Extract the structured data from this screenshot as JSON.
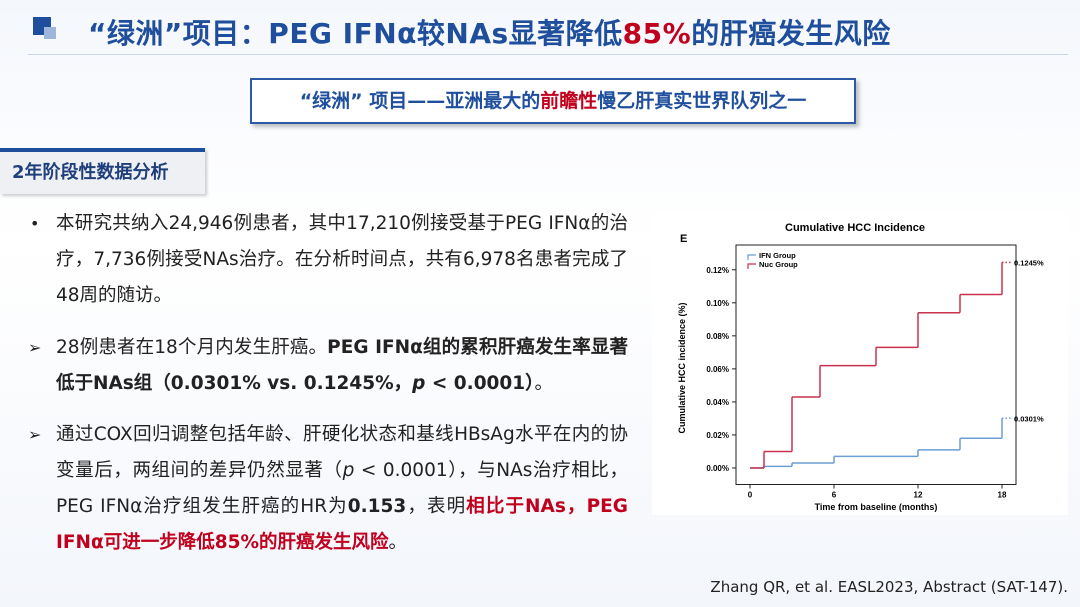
{
  "header": {
    "title": [
      "“绿洲”项目：PEG IFNα较NAs显著降低",
      "85%",
      "的肝癌发生风险"
    ]
  },
  "subtitle": [
    "“绿洲” 项目——亚洲最大的",
    "前瞻性",
    "慢乙肝真实世界队列之一"
  ],
  "section": "2年阶段性数据分析",
  "bullets": [
    [
      "本研究共纳入24,946例患者，其中17,210例接受基于PEG IFNα的治疗，7,736例接受NAs治疗。在分析时间点，共有6,978名患者完成了48周的随访。"
    ],
    [
      "28例患者在18个月内发生肝癌。",
      "PEG IFNα组的累积肝癌发生率显著低于NAs组（0.0301% vs. 0.1245%，",
      "p",
      " < 0.0001）",
      "。"
    ],
    [
      "通过COX回归调整包括年龄、肝硬化状态和基线HBsAg水平在内的协变量后，两组间的差异仍然显著（",
      "p",
      " < 0.0001），与NAs治疗相比，PEG IFNα治疗组发生肝癌的HR为",
      "0.153",
      "，表明",
      "相比于NAs，PEG IFNα可进一步降低85%的肝癌发生风险",
      "。"
    ]
  ],
  "citation": "Zhang QR, et al. EASL2023, Abstract (SAT-147).",
  "chart_data": {
    "type": "line",
    "step": "post",
    "panel_label": "E",
    "title": "Cumulative HCC Incidence",
    "x_label": "Time from baseline (months)",
    "y_label": "Cumulative HCC incidence (%)",
    "xlim": [
      -1,
      19
    ],
    "xticks": [
      0,
      6,
      12,
      18
    ],
    "ylim": [
      -0.01,
      0.135
    ],
    "yticks": [
      {
        "value": 0,
        "label": "0.00%"
      },
      {
        "value": 0.02,
        "label": "0.02%"
      },
      {
        "value": 0.04,
        "label": "0.04%"
      },
      {
        "value": 0.06,
        "label": "0.06%"
      },
      {
        "value": 0.08,
        "label": "0.08%"
      },
      {
        "value": 0.1,
        "label": "0.10%"
      },
      {
        "value": 0.12,
        "label": "0.12%"
      }
    ],
    "legend": "upper left",
    "series": [
      {
        "name": "IFN Group",
        "color": "#6b9ed3",
        "x": [
          0,
          1,
          3,
          6,
          12,
          15,
          18
        ],
        "values": [
          0,
          0.001,
          0.003,
          0.007,
          0.011,
          0.018,
          0.0301
        ]
      },
      {
        "name": "Nuc Group",
        "color": "#c8324e",
        "x": [
          0,
          1,
          3,
          5,
          9,
          12,
          15,
          18
        ],
        "values": [
          0,
          0.01,
          0.043,
          0.062,
          0.073,
          0.094,
          0.105,
          0.1245
        ]
      }
    ],
    "annotations": [
      {
        "text": "0.1245%",
        "x": 18,
        "y": 0.1245
      },
      {
        "text": "0.0301%",
        "x": 18,
        "y": 0.0301
      }
    ]
  }
}
